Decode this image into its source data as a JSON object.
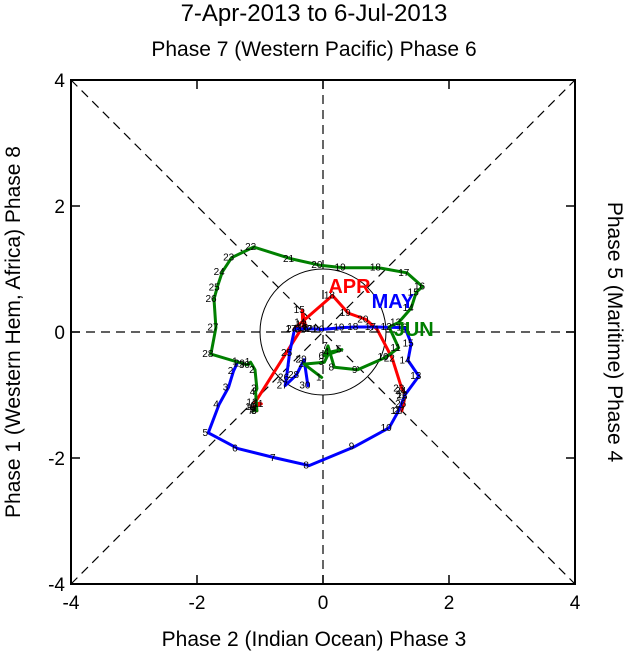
{
  "chart_data": {
    "type": "line",
    "title": "7-Apr-2013 to 6-Jul-2013",
    "subtitle": "Phase 7 (Western Pacific) Phase 6",
    "xlabel": "Phase 2 (Indian Ocean) Phase 3",
    "ylabel_left": "Phase 1 (Western Hem, Africa) Phase 8",
    "ylabel_right": "Phase 5 (Maritime) Phase 4",
    "xlim": [
      -4,
      4
    ],
    "ylim": [
      -4,
      4
    ],
    "xticks": [
      -4,
      -2,
      0,
      2,
      4
    ],
    "yticks": [
      -4,
      -2,
      0,
      2,
      4
    ],
    "circle_radius": 1,
    "series": [
      {
        "name": "APR",
        "color": "#ff0000",
        "label_pos": [
          0.42,
          0.62
        ],
        "points": [
          [
            -1.05,
            -1.25
          ],
          [
            -1.07,
            -1.23
          ],
          [
            -1.1,
            -1.19
          ],
          [
            -0.98,
            -1.14
          ],
          [
            -1.08,
            -1.12
          ],
          [
            -0.3,
            0.12
          ],
          [
            -0.32,
            0.15
          ],
          [
            -0.33,
            0.35
          ],
          [
            -0.27,
            0.06
          ],
          [
            -0.46,
            0.05
          ],
          [
            0.15,
            0.58
          ],
          [
            0.4,
            0.3
          ],
          [
            0.68,
            0.2
          ],
          [
            0.86,
            0.04
          ],
          [
            1.1,
            -0.42
          ],
          [
            1.25,
            -0.9
          ],
          [
            1.28,
            -0.94
          ],
          [
            1.3,
            -1.02
          ],
          [
            1.28,
            -1.14
          ],
          [
            1.25,
            -1.25
          ]
        ],
        "day_labels": [
          "8",
          "9",
          "10",
          "11",
          "12",
          "13",
          "14",
          "15",
          "16",
          "17",
          "18",
          "19",
          "20",
          "21",
          "22",
          "23",
          "24",
          "25",
          "26",
          "27"
        ]
      },
      {
        "name": "MAY",
        "color": "#0000ff",
        "label_pos": [
          1.11,
          0.38
        ],
        "points": [
          [
            -1.35,
            -0.47
          ],
          [
            -1.42,
            -0.62
          ],
          [
            -1.5,
            -0.88
          ],
          [
            -1.65,
            -1.15
          ],
          [
            -1.82,
            -1.6
          ],
          [
            -1.35,
            -1.85
          ],
          [
            -0.75,
            -2.0
          ],
          [
            -0.22,
            -2.12
          ],
          [
            0.5,
            -1.82
          ],
          [
            1.05,
            -1.52
          ],
          [
            1.2,
            -1.25
          ],
          [
            1.3,
            -1.0
          ],
          [
            1.52,
            -0.7
          ],
          [
            1.35,
            -0.45
          ],
          [
            1.4,
            -0.18
          ],
          [
            1.3,
            0.07
          ],
          [
            0.8,
            0.08
          ],
          [
            0.52,
            0.08
          ],
          [
            0.3,
            0.07
          ],
          [
            -0.02,
            0.04
          ],
          [
            -0.13,
            0.05
          ],
          [
            -0.2,
            0.05
          ],
          [
            -0.3,
            0.05
          ],
          [
            -0.45,
            0.05
          ],
          [
            -0.53,
            -0.33
          ],
          [
            -0.58,
            -0.72
          ],
          [
            -0.6,
            -0.85
          ],
          [
            -0.42,
            -0.68
          ],
          [
            -0.3,
            -0.44
          ],
          [
            -0.24,
            -0.85
          ]
        ],
        "day_labels": [
          "1",
          "2",
          "3",
          "4",
          "5",
          "6",
          "7",
          "8",
          "9",
          "10",
          "11",
          "12",
          "13",
          "14",
          "15",
          "16",
          "17",
          "18",
          "19",
          "20",
          "21",
          "22",
          "23",
          "24",
          "25",
          "26",
          "27",
          "28",
          "29",
          "30"
        ]
      },
      {
        "name": "JUN",
        "color": "#008000",
        "label_pos": [
          1.44,
          -0.06
        ],
        "points": [
          [
            -0.02,
            -0.72
          ],
          [
            -0.3,
            -0.51
          ],
          [
            0.02,
            -0.48
          ],
          [
            0.1,
            -0.32
          ],
          [
            0.3,
            -0.28
          ],
          [
            0.02,
            -0.38
          ],
          [
            0.08,
            -0.22
          ],
          [
            0.18,
            -0.56
          ],
          [
            0.55,
            -0.6
          ],
          [
            1.0,
            -0.4
          ],
          [
            1.2,
            -0.25
          ],
          [
            1.05,
            0.08
          ],
          [
            1.2,
            0.15
          ],
          [
            1.4,
            0.38
          ],
          [
            1.48,
            0.63
          ],
          [
            1.58,
            0.72
          ],
          [
            1.33,
            0.94
          ],
          [
            0.88,
            1.02
          ],
          [
            0.32,
            1.02
          ],
          [
            -0.05,
            1.06
          ],
          [
            -0.5,
            1.16
          ],
          [
            -1.1,
            1.35
          ],
          [
            -1.45,
            1.18
          ],
          [
            -1.6,
            0.95
          ],
          [
            -1.68,
            0.71
          ],
          [
            -1.73,
            0.52
          ],
          [
            -1.7,
            0.07
          ],
          [
            -1.78,
            -0.35
          ],
          [
            -1.28,
            -0.5
          ],
          [
            -1.2,
            -0.52
          ],
          [
            -1.15,
            -0.48
          ],
          [
            -1.08,
            -0.6
          ],
          [
            -1.05,
            -0.9
          ],
          [
            -1.07,
            -0.95
          ],
          [
            -1.05,
            -1.25
          ],
          [
            -1.08,
            -1.2
          ],
          [
            -1.1,
            -1.25
          ]
        ],
        "day_labels": [
          "1",
          "2",
          "3",
          "4",
          "5",
          "6",
          "7",
          "8",
          "9",
          "10",
          "11",
          "12",
          "13",
          "14",
          "15",
          "16",
          "17",
          "18",
          "19",
          "20",
          "21",
          "22",
          "23",
          "24",
          "25",
          "26",
          "27",
          "28",
          "29",
          "30",
          "1",
          "2",
          "3",
          "4",
          "5",
          "6",
          "7"
        ]
      }
    ]
  }
}
